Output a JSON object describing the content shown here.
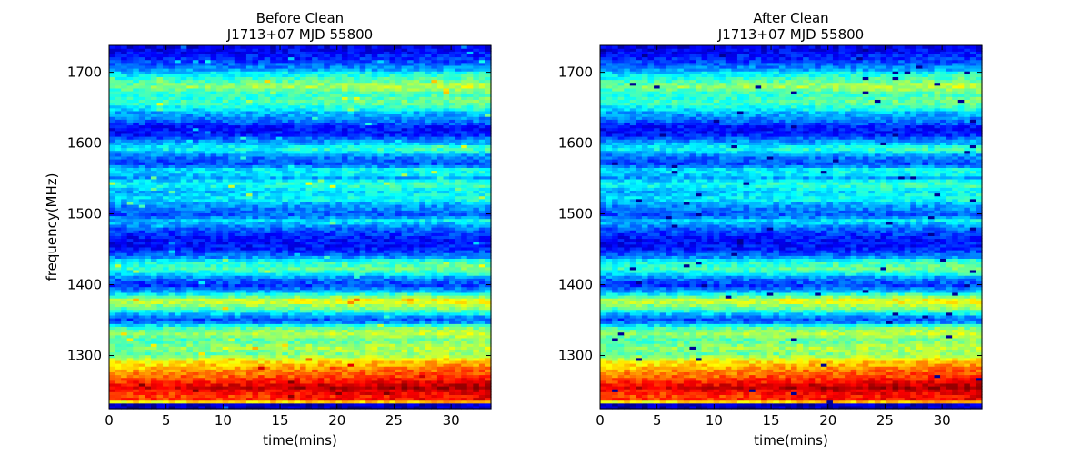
{
  "chart_data": [
    {
      "type": "heatmap",
      "title": "Before Clean",
      "subtitle": "J1713+07 MJD 55800",
      "xlabel": "time(mins)",
      "ylabel": "frequency(MHz)",
      "xlim": [
        0,
        33.5
      ],
      "ylim": [
        1225,
        1738
      ],
      "x_ticks": [
        0,
        5,
        10,
        15,
        20,
        25,
        30
      ],
      "y_ticks": [
        1300,
        1400,
        1500,
        1600,
        1700
      ],
      "colormap": "jet",
      "n_time_bins": 64,
      "n_freq_bins": 128
    },
    {
      "type": "heatmap",
      "title": "After Clean",
      "subtitle": "J1713+07  MJD 55800",
      "xlabel": "time(mins)",
      "ylabel": "",
      "xlim": [
        0,
        33.5
      ],
      "ylim": [
        1225,
        1738
      ],
      "x_ticks": [
        0,
        5,
        10,
        15,
        20,
        25,
        30
      ],
      "y_ticks": [
        1300,
        1400,
        1500,
        1600,
        1700
      ],
      "colormap": "jet",
      "n_time_bins": 64,
      "n_freq_bins": 128
    }
  ]
}
